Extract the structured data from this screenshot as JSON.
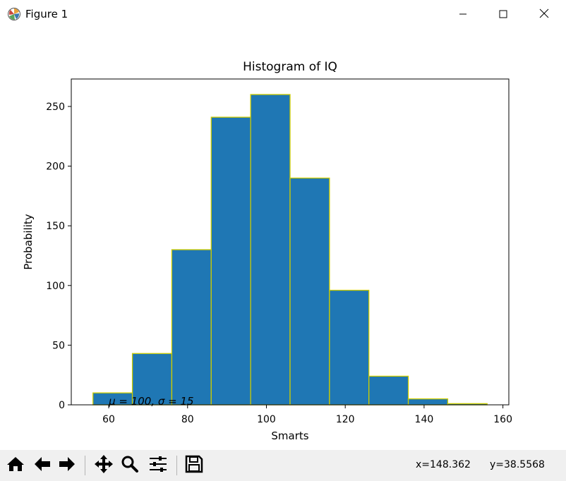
{
  "window": {
    "title": "Figure 1",
    "app_icon": "matplotlib-icon",
    "controls": [
      "minimize-icon",
      "maximize-icon",
      "close-icon"
    ]
  },
  "chart_data": {
    "type": "bar",
    "title": "Histogram of IQ",
    "xlabel": "Smarts",
    "ylabel": "Probability",
    "bin_edges": [
      56,
      66,
      76,
      86,
      96,
      106,
      116,
      126,
      136,
      146,
      156
    ],
    "values": [
      10,
      43,
      130,
      241,
      260,
      190,
      96,
      24,
      5,
      1
    ],
    "xlim": [
      50.5,
      161.5
    ],
    "ylim": [
      0,
      273
    ],
    "xticks": [
      60,
      80,
      100,
      120,
      140,
      160
    ],
    "yticks": [
      0,
      50,
      100,
      150,
      200,
      250
    ],
    "bar_color": "#1f77b4",
    "edge_color": "#cccc00",
    "annotation": {
      "text": "μ = 100, σ = 15",
      "x": 60,
      "y": 0
    }
  },
  "toolbar": {
    "buttons": [
      "home-icon",
      "back-icon",
      "forward-icon",
      "pan-icon",
      "zoom-icon",
      "configure-subplots-icon",
      "save-icon"
    ],
    "coord_x": "x=148.362",
    "coord_y": "y=38.5568"
  }
}
